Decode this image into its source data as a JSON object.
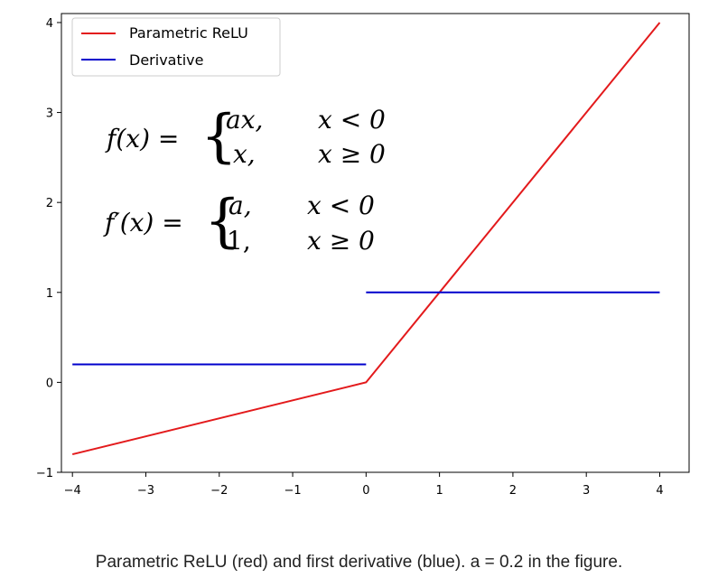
{
  "chart_data": {
    "type": "line",
    "xlim": [
      -4.15,
      4.4
    ],
    "ylim": [
      -1.0,
      4.1
    ],
    "xticks": [
      -4,
      -3,
      -2,
      -1,
      0,
      1,
      2,
      3,
      4
    ],
    "yticks": [
      -1,
      0,
      1,
      2,
      3,
      4
    ],
    "xtick_labels": [
      "−4",
      "−3",
      "−2",
      "−1",
      "0",
      "1",
      "2",
      "3",
      "4"
    ],
    "ytick_labels": [
      "−1",
      "0",
      "1",
      "2",
      "3",
      "4"
    ],
    "grid": false,
    "legend_position": "top-left",
    "series": [
      {
        "name": "Parametric ReLU",
        "color": "#e31a1c",
        "x": [
          -4,
          0,
          4
        ],
        "y": [
          -0.8,
          0,
          4
        ]
      },
      {
        "name": "Derivative",
        "color": "#0000cc",
        "segments": [
          {
            "x": [
              -4,
              0
            ],
            "y": [
              0.2,
              0.2
            ]
          },
          {
            "x": [
              0,
              4
            ],
            "y": [
              1,
              1
            ]
          }
        ]
      }
    ],
    "annotations": {
      "f_lhs": "f(x) =",
      "f_case1_expr": "ax,",
      "f_case1_cond": "x < 0",
      "f_case2_expr": "x,",
      "f_case2_cond": "x ≥ 0",
      "df_lhs": "f′(x) =",
      "df_case1_expr": "a,",
      "df_case1_cond": "x < 0",
      "df_case2_expr": "1,",
      "df_case2_cond": "x ≥ 0"
    }
  },
  "caption": "Parametric ReLU (red) and first derivative (blue). a = 0.2 in the figure."
}
